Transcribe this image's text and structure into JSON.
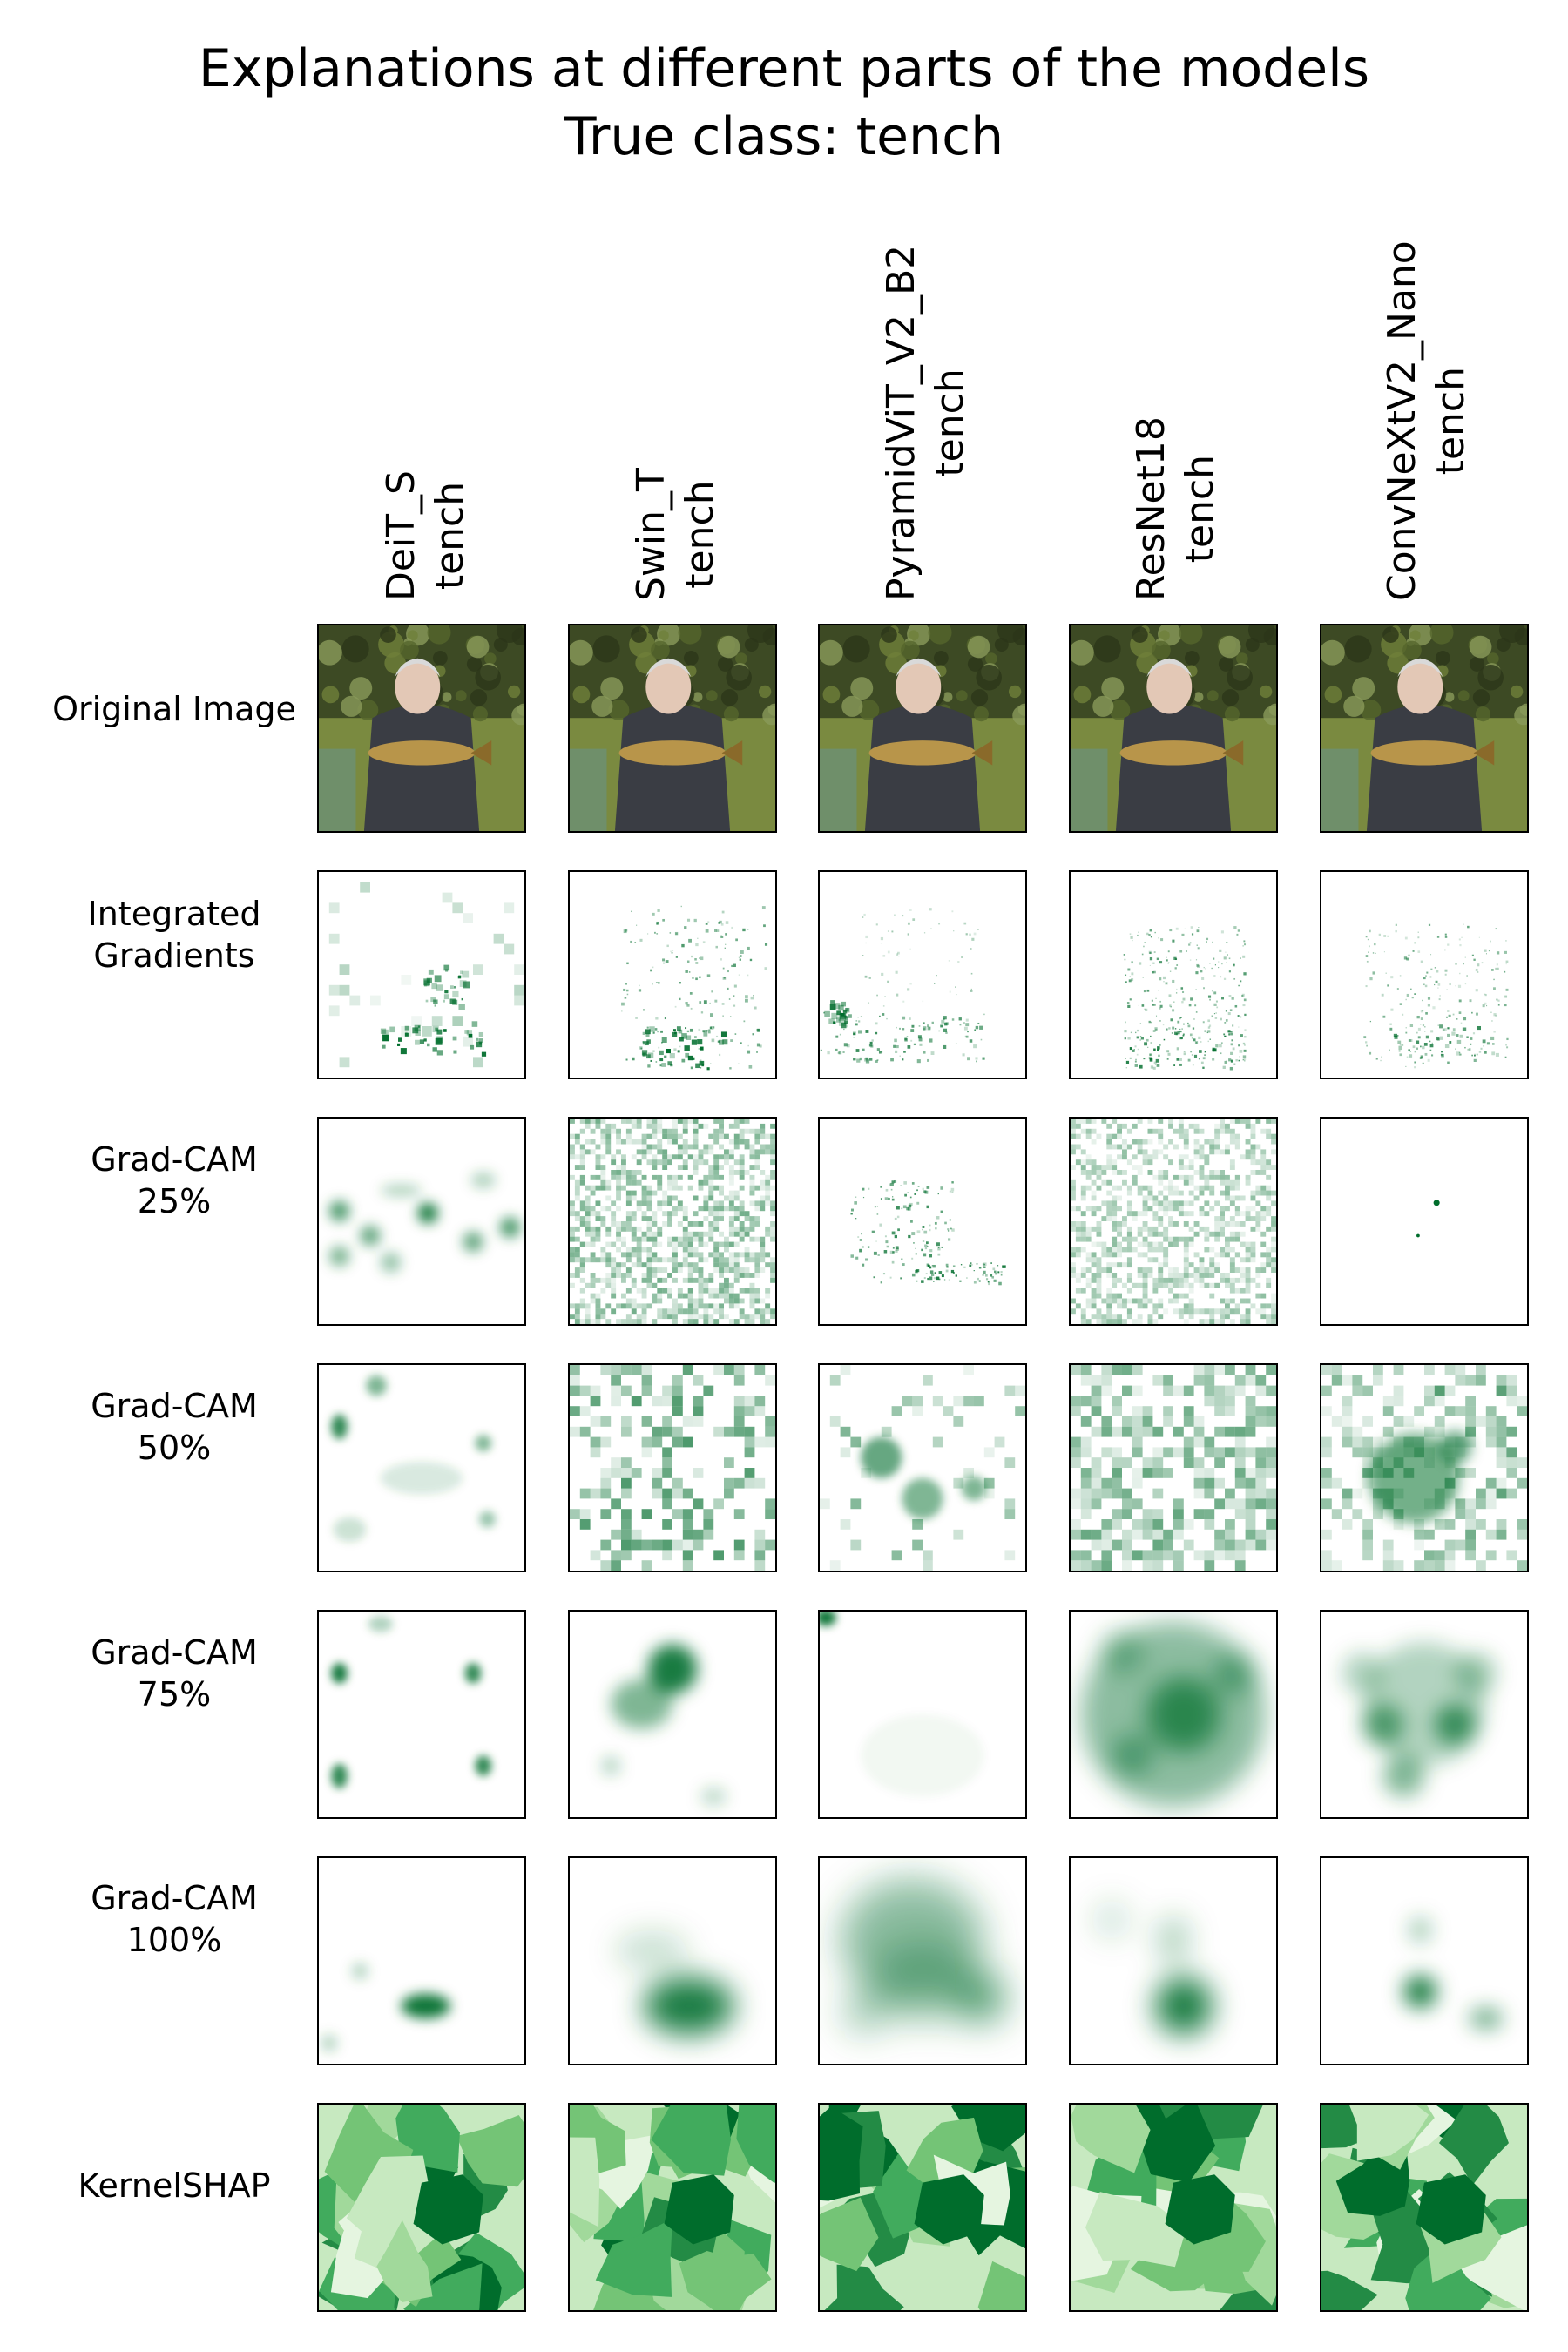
{
  "title": {
    "line1": "Explanations at different parts of the models",
    "line2": "True class: tench"
  },
  "models": [
    {
      "name": "DeiT_S",
      "prediction": "tench"
    },
    {
      "name": "Swin_T",
      "prediction": "tench"
    },
    {
      "name": "PyramidViT_V2_B2",
      "prediction": "tench"
    },
    {
      "name": "ResNet18",
      "prediction": "tench"
    },
    {
      "name": "ConvNeXtV2_Nano",
      "prediction": "tench"
    }
  ],
  "rows": [
    {
      "line1": "Original Image",
      "line2": ""
    },
    {
      "line1": "Integrated",
      "line2": "Gradients"
    },
    {
      "line1": "Grad-CAM",
      "line2": "25%"
    },
    {
      "line1": "Grad-CAM",
      "line2": "50%"
    },
    {
      "line1": "Grad-CAM",
      "line2": "75%"
    },
    {
      "line1": "Grad-CAM",
      "line2": "100%"
    },
    {
      "line1": "KernelSHAP",
      "line2": ""
    }
  ],
  "colors": {
    "heatmap_dark": "#006d2c",
    "heatmap_mid": "#41ab5d",
    "heatmap_light": "#c7e9c0",
    "photo_foliage": "#3d4a24",
    "photo_grass": "#7a8a40",
    "photo_jacket": "#3a3d44",
    "photo_fish": "#b8954a"
  }
}
